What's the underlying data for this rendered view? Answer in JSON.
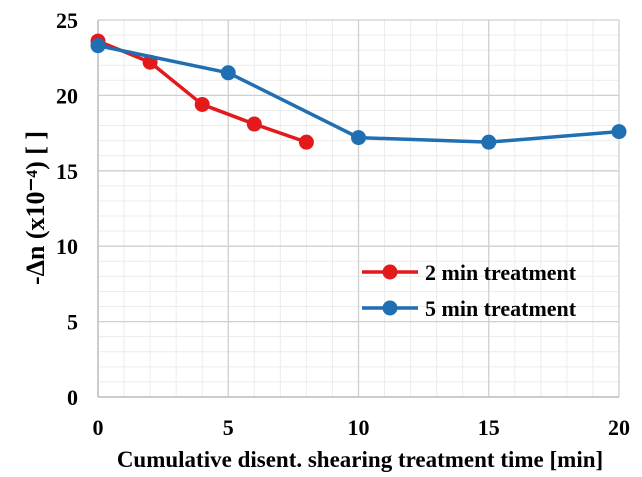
{
  "chart_data": {
    "type": "line",
    "title": "",
    "xlabel": "Cumulative disent. shearing treatment time [min]",
    "ylabel": "-Δn (x10⁻⁴) [ ]",
    "xlim": [
      0,
      20
    ],
    "ylim": [
      0,
      25
    ],
    "xticks": [
      0,
      5,
      10,
      15,
      20
    ],
    "yticks": [
      0,
      5,
      10,
      15,
      20,
      25
    ],
    "grid": true,
    "legend_position": "lower-right",
    "series": [
      {
        "name": "2 min treatment",
        "color": "#e31a1c",
        "x": [
          0,
          2,
          4,
          6,
          8
        ],
        "y": [
          23.6,
          22.2,
          19.4,
          18.1,
          16.9
        ]
      },
      {
        "name": "5 min treatment",
        "color": "#1f6fb2",
        "x": [
          0,
          5,
          10,
          15,
          20
        ],
        "y": [
          23.3,
          21.5,
          17.2,
          16.9,
          17.6
        ]
      }
    ]
  }
}
